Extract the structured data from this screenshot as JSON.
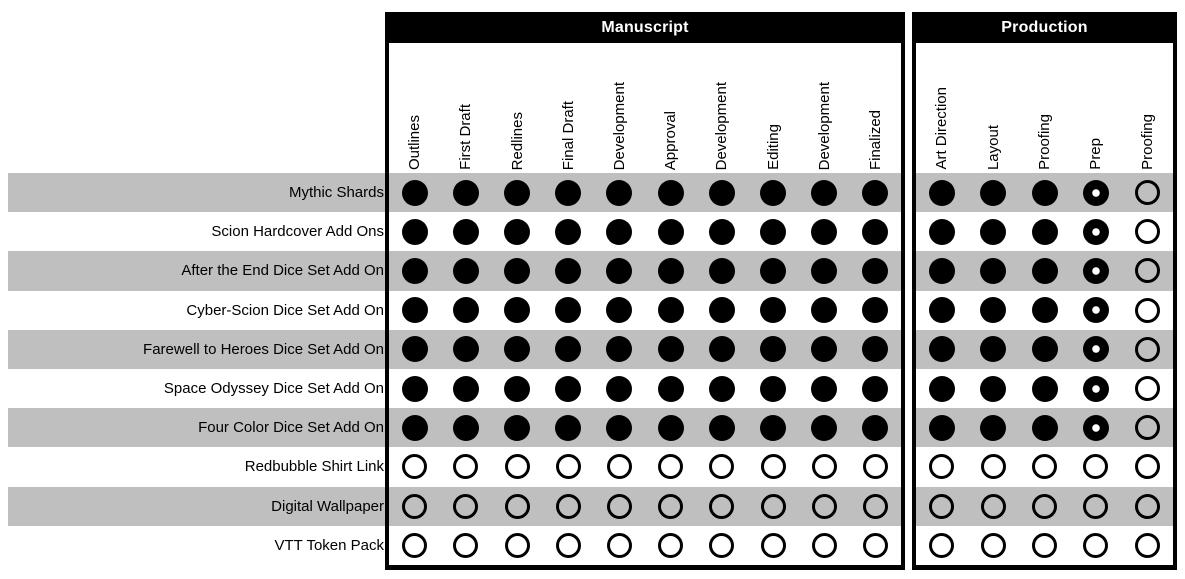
{
  "chart_data": {
    "type": "table",
    "description_states": [
      "filled",
      "partial",
      "empty"
    ],
    "column_groups": [
      {
        "name": "Manuscript",
        "columns": [
          "Outlines",
          "First Draft",
          "Redlines",
          "Final Draft",
          "Development",
          "Approval",
          "Development",
          "Editing",
          "Development",
          "Finalized"
        ]
      },
      {
        "name": "Production",
        "columns": [
          "Art Direction",
          "Layout",
          "Proofing",
          "Prep",
          "Proofing"
        ]
      }
    ],
    "rows": [
      {
        "label": "Mythic Shards",
        "cells": [
          [
            "filled",
            "filled",
            "filled",
            "filled",
            "filled",
            "filled",
            "filled",
            "filled",
            "filled",
            "filled"
          ],
          [
            "filled",
            "filled",
            "filled",
            "partial",
            "empty"
          ]
        ]
      },
      {
        "label": "Scion Hardcover Add Ons",
        "cells": [
          [
            "filled",
            "filled",
            "filled",
            "filled",
            "filled",
            "filled",
            "filled",
            "filled",
            "filled",
            "filled"
          ],
          [
            "filled",
            "filled",
            "filled",
            "partial",
            "empty"
          ]
        ]
      },
      {
        "label": "After the End Dice Set Add On",
        "cells": [
          [
            "filled",
            "filled",
            "filled",
            "filled",
            "filled",
            "filled",
            "filled",
            "filled",
            "filled",
            "filled"
          ],
          [
            "filled",
            "filled",
            "filled",
            "partial",
            "empty"
          ]
        ]
      },
      {
        "label": "Cyber-Scion Dice Set Add On",
        "cells": [
          [
            "filled",
            "filled",
            "filled",
            "filled",
            "filled",
            "filled",
            "filled",
            "filled",
            "filled",
            "filled"
          ],
          [
            "filled",
            "filled",
            "filled",
            "partial",
            "empty"
          ]
        ]
      },
      {
        "label": "Farewell to Heroes Dice Set Add On",
        "cells": [
          [
            "filled",
            "filled",
            "filled",
            "filled",
            "filled",
            "filled",
            "filled",
            "filled",
            "filled",
            "filled"
          ],
          [
            "filled",
            "filled",
            "filled",
            "partial",
            "empty"
          ]
        ]
      },
      {
        "label": "Space Odyssey Dice Set Add On",
        "cells": [
          [
            "filled",
            "filled",
            "filled",
            "filled",
            "filled",
            "filled",
            "filled",
            "filled",
            "filled",
            "filled"
          ],
          [
            "filled",
            "filled",
            "filled",
            "partial",
            "empty"
          ]
        ]
      },
      {
        "label": "Four Color Dice Set Add On",
        "cells": [
          [
            "filled",
            "filled",
            "filled",
            "filled",
            "filled",
            "filled",
            "filled",
            "filled",
            "filled",
            "filled"
          ],
          [
            "filled",
            "filled",
            "filled",
            "partial",
            "empty"
          ]
        ]
      },
      {
        "label": "Redbubble Shirt Link",
        "cells": [
          [
            "empty",
            "empty",
            "empty",
            "empty",
            "empty",
            "empty",
            "empty",
            "empty",
            "empty",
            "empty"
          ],
          [
            "empty",
            "empty",
            "empty",
            "empty",
            "empty"
          ]
        ]
      },
      {
        "label": "Digital Wallpaper",
        "cells": [
          [
            "empty",
            "empty",
            "empty",
            "empty",
            "empty",
            "empty",
            "empty",
            "empty",
            "empty",
            "empty"
          ],
          [
            "empty",
            "empty",
            "empty",
            "empty",
            "empty"
          ]
        ]
      },
      {
        "label": "VTT Token Pack",
        "cells": [
          [
            "empty",
            "empty",
            "empty",
            "empty",
            "empty",
            "empty",
            "empty",
            "empty",
            "empty",
            "empty"
          ],
          [
            "empty",
            "empty",
            "empty",
            "empty",
            "empty"
          ]
        ]
      }
    ]
  },
  "colors": {
    "header_bg": "#000000",
    "header_text": "#ffffff",
    "stripe": "#bfbfbf",
    "dot": "#000000"
  }
}
